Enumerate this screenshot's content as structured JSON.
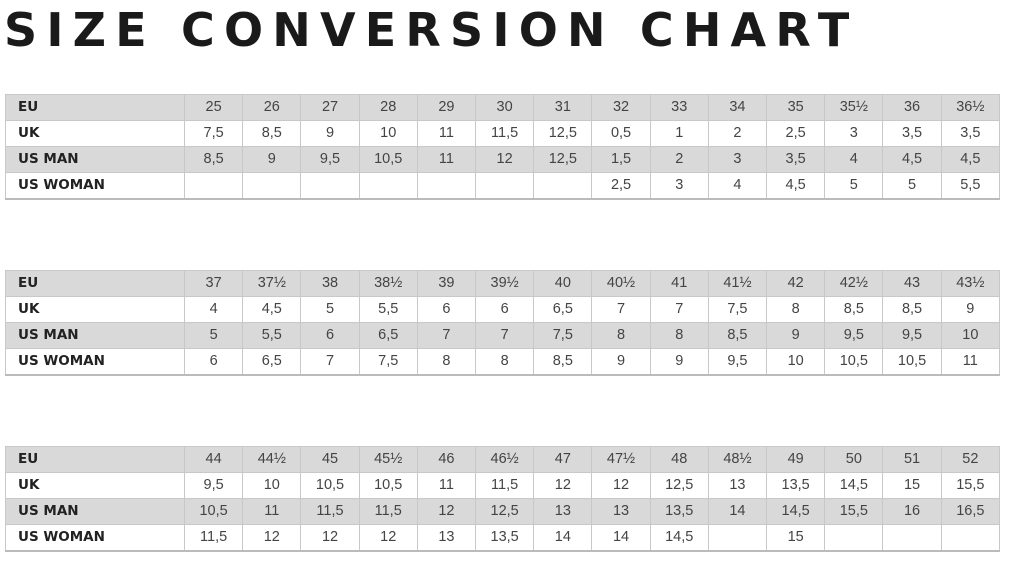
{
  "title": "SIZE CONVERSION CHART",
  "row_labels": [
    "EU",
    "UK",
    "US MAN",
    "US WOMAN"
  ],
  "tables": [
    {
      "EU": [
        "25",
        "26",
        "27",
        "28",
        "29",
        "30",
        "31",
        "32",
        "33",
        "34",
        "35",
        "35½",
        "36",
        "36½"
      ],
      "UK": [
        "7,5",
        "8,5",
        "9",
        "10",
        "11",
        "11,5",
        "12,5",
        "0,5",
        "1",
        "2",
        "2,5",
        "3",
        "3,5",
        "3,5"
      ],
      "US MAN": [
        "8,5",
        "9",
        "9,5",
        "10,5",
        "11",
        "12",
        "12,5",
        "1,5",
        "2",
        "3",
        "3,5",
        "4",
        "4,5",
        "4,5"
      ],
      "US WOMAN": [
        "",
        "",
        "",
        "",
        "",
        "",
        "",
        "2,5",
        "3",
        "4",
        "4,5",
        "5",
        "5",
        "5,5"
      ]
    },
    {
      "EU": [
        "37",
        "37½",
        "38",
        "38½",
        "39",
        "39½",
        "40",
        "40½",
        "41",
        "41½",
        "42",
        "42½",
        "43",
        "43½"
      ],
      "UK": [
        "4",
        "4,5",
        "5",
        "5,5",
        "6",
        "6",
        "6,5",
        "7",
        "7",
        "7,5",
        "8",
        "8,5",
        "8,5",
        "9"
      ],
      "US MAN": [
        "5",
        "5,5",
        "6",
        "6,5",
        "7",
        "7",
        "7,5",
        "8",
        "8",
        "8,5",
        "9",
        "9,5",
        "9,5",
        "10"
      ],
      "US WOMAN": [
        "6",
        "6,5",
        "7",
        "7,5",
        "8",
        "8",
        "8,5",
        "9",
        "9",
        "9,5",
        "10",
        "10,5",
        "10,5",
        "11"
      ]
    },
    {
      "EU": [
        "44",
        "44½",
        "45",
        "45½",
        "46",
        "46½",
        "47",
        "47½",
        "48",
        "48½",
        "49",
        "50",
        "51",
        "52"
      ],
      "UK": [
        "9,5",
        "10",
        "10,5",
        "10,5",
        "11",
        "11,5",
        "12",
        "12",
        "12,5",
        "13",
        "13,5",
        "14,5",
        "15",
        "15,5"
      ],
      "US MAN": [
        "10,5",
        "11",
        "11,5",
        "11,5",
        "12",
        "12,5",
        "13",
        "13",
        "13,5",
        "14",
        "14,5",
        "15,5",
        "16",
        "16,5"
      ],
      "US WOMAN": [
        "11,5",
        "12",
        "12",
        "12",
        "13",
        "13,5",
        "14",
        "14",
        "14,5",
        "",
        "15",
        "",
        "",
        ""
      ]
    }
  ],
  "colors": {
    "grey_row": "#d9d9d9",
    "border": "#c8c8c8",
    "title": "#1a1a1a"
  }
}
